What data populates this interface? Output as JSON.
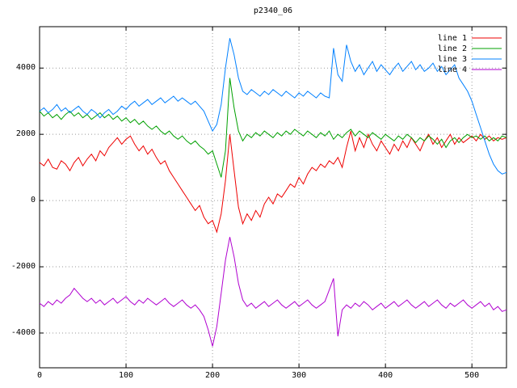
{
  "chart_data": {
    "type": "line",
    "title": "p2340_06",
    "xlabel": "",
    "ylabel": "",
    "xlim": [
      0,
      540
    ],
    "ylim": [
      -5050,
      5250
    ],
    "xticks": [
      0,
      100,
      200,
      300,
      400,
      500
    ],
    "yticks": [
      -4000,
      -2000,
      0,
      2000,
      4000
    ],
    "grid": "dotted",
    "grid_color": "#9a9a9a",
    "axis_color": "#000000",
    "background": "#ffffff",
    "legend_position": "top-right",
    "x_step": 5,
    "series": [
      {
        "name": "line 1",
        "color": "#ee0000",
        "values": [
          1150,
          1050,
          1250,
          1000,
          950,
          1200,
          1100,
          900,
          1150,
          1300,
          1050,
          1250,
          1400,
          1200,
          1500,
          1350,
          1600,
          1750,
          1900,
          1700,
          1850,
          1950,
          1700,
          1500,
          1650,
          1400,
          1550,
          1300,
          1100,
          1200,
          900,
          700,
          500,
          300,
          100,
          -100,
          -300,
          -150,
          -500,
          -700,
          -600,
          -950,
          -400,
          600,
          2000,
          900,
          -200,
          -700,
          -400,
          -600,
          -300,
          -500,
          -100,
          100,
          -100,
          200,
          100,
          300,
          500,
          400,
          700,
          500,
          800,
          1000,
          900,
          1100,
          1000,
          1200,
          1100,
          1300,
          1000,
          1600,
          2100,
          1500,
          1900,
          1600,
          2000,
          1700,
          1500,
          1800,
          1600,
          1400,
          1700,
          1500,
          1800,
          1600,
          1900,
          1700,
          1500,
          1800,
          2000,
          1700,
          1900,
          1600,
          1800,
          2000,
          1700,
          1900,
          1750,
          1850,
          1950,
          1800,
          2000,
          1850,
          1950,
          1800,
          1900,
          1850,
          1900
        ]
      },
      {
        "name": "line 2",
        "color": "#00a000",
        "values": [
          2700,
          2550,
          2650,
          2500,
          2600,
          2450,
          2600,
          2700,
          2550,
          2650,
          2500,
          2600,
          2450,
          2550,
          2650,
          2500,
          2600,
          2450,
          2550,
          2400,
          2500,
          2350,
          2450,
          2300,
          2400,
          2250,
          2150,
          2250,
          2100,
          2000,
          2100,
          1950,
          1850,
          1950,
          1800,
          1700,
          1800,
          1650,
          1550,
          1400,
          1500,
          1100,
          700,
          1500,
          3700,
          2800,
          2100,
          1800,
          2000,
          1900,
          2050,
          1950,
          2100,
          2000,
          1900,
          2050,
          1950,
          2100,
          2000,
          2150,
          2050,
          1950,
          2100,
          2000,
          1900,
          2050,
          1950,
          2100,
          1850,
          2000,
          1900,
          2050,
          2150,
          1950,
          2100,
          2000,
          1900,
          2050,
          1950,
          1850,
          2000,
          1900,
          1800,
          1950,
          1850,
          2000,
          1900,
          1750,
          1900,
          1800,
          1950,
          1850,
          1700,
          1850,
          1600,
          1800,
          1900,
          1750,
          1900,
          2000,
          1900,
          1950,
          1850,
          1950,
          1800,
          1900,
          1800,
          1950,
          1900
        ]
      },
      {
        "name": "line 3",
        "color": "#0080ff",
        "values": [
          2700,
          2800,
          2650,
          2750,
          2900,
          2700,
          2800,
          2650,
          2750,
          2850,
          2700,
          2600,
          2750,
          2650,
          2500,
          2650,
          2750,
          2600,
          2700,
          2850,
          2750,
          2900,
          3000,
          2850,
          2950,
          3050,
          2900,
          3000,
          3100,
          2950,
          3050,
          3150,
          3000,
          3100,
          3000,
          2900,
          3000,
          2850,
          2700,
          2400,
          2100,
          2300,
          2900,
          4000,
          4900,
          4400,
          3700,
          3300,
          3200,
          3350,
          3250,
          3150,
          3300,
          3200,
          3350,
          3250,
          3150,
          3300,
          3200,
          3100,
          3250,
          3150,
          3300,
          3200,
          3100,
          3250,
          3150,
          3100,
          4600,
          3800,
          3600,
          4700,
          4200,
          3900,
          4100,
          3800,
          4000,
          4200,
          3900,
          4100,
          3950,
          3800,
          4000,
          4150,
          3900,
          4050,
          4200,
          3950,
          4100,
          3900,
          4000,
          4150,
          3900,
          4050,
          3800,
          3950,
          4100,
          3700,
          3500,
          3300,
          3000,
          2600,
          2200,
          1800,
          1400,
          1100,
          900,
          800,
          850
        ]
      },
      {
        "name": "line 4",
        "color": "#b000d0",
        "values": [
          -3100,
          -3200,
          -3050,
          -3150,
          -3000,
          -3100,
          -2950,
          -2850,
          -2650,
          -2800,
          -2950,
          -3050,
          -2950,
          -3100,
          -3000,
          -3150,
          -3050,
          -2950,
          -3100,
          -3000,
          -2900,
          -3050,
          -3150,
          -3000,
          -3100,
          -2950,
          -3050,
          -3150,
          -3050,
          -2950,
          -3100,
          -3200,
          -3100,
          -3000,
          -3150,
          -3250,
          -3150,
          -3300,
          -3500,
          -3900,
          -4400,
          -3800,
          -2800,
          -1800,
          -1100,
          -1700,
          -2500,
          -3000,
          -3200,
          -3100,
          -3250,
          -3150,
          -3050,
          -3200,
          -3100,
          -3000,
          -3150,
          -3250,
          -3150,
          -3050,
          -3200,
          -3100,
          -3000,
          -3150,
          -3250,
          -3150,
          -3050,
          -2700,
          -2350,
          -4100,
          -3300,
          -3150,
          -3250,
          -3100,
          -3200,
          -3050,
          -3150,
          -3300,
          -3200,
          -3100,
          -3250,
          -3150,
          -3050,
          -3200,
          -3100,
          -3000,
          -3150,
          -3250,
          -3150,
          -3050,
          -3200,
          -3100,
          -3000,
          -3150,
          -3250,
          -3100,
          -3200,
          -3100,
          -3000,
          -3150,
          -3250,
          -3150,
          -3050,
          -3200,
          -3100,
          -3300,
          -3200,
          -3350,
          -3300
        ]
      }
    ]
  }
}
